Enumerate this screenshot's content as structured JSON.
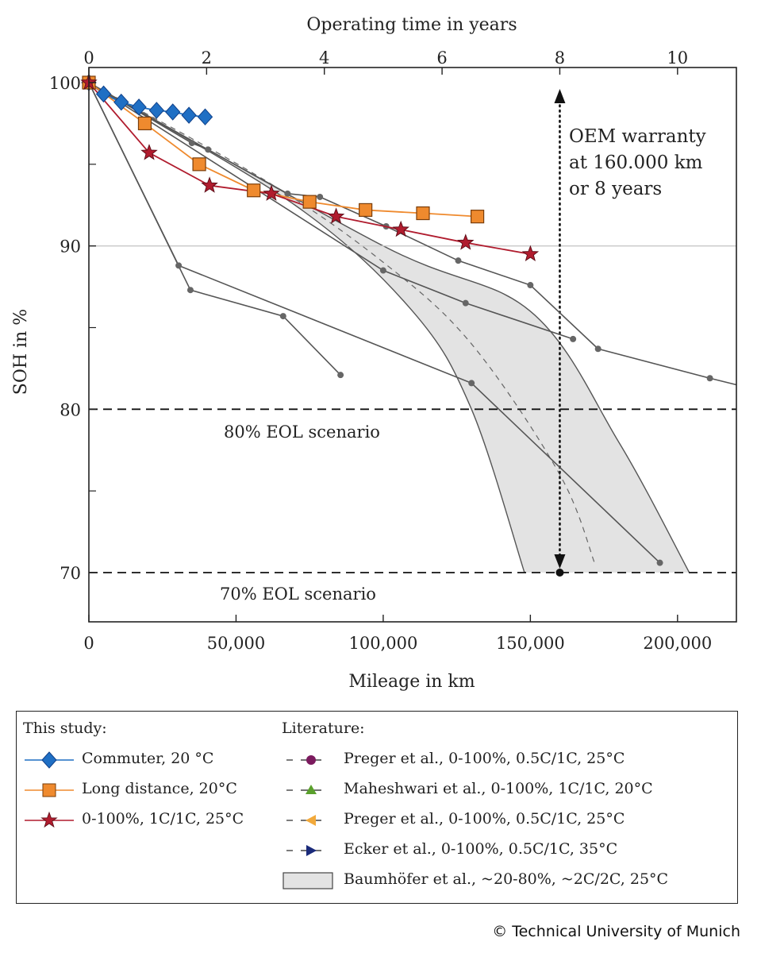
{
  "chart_data": {
    "type": "line",
    "title": "",
    "xlabel": "Mileage in km",
    "x2label": "Operating time in years",
    "ylabel": "SOH in %",
    "xlim": [
      0,
      220000
    ],
    "x2lim": [
      0,
      11
    ],
    "ylim": [
      67,
      100
    ],
    "xticks": [
      0,
      50000,
      100000,
      150000,
      200000
    ],
    "xtick_labels": [
      "0",
      "50,000",
      "100,000",
      "150,000",
      "200,000"
    ],
    "x2ticks": [
      0,
      2,
      4,
      6,
      8,
      10
    ],
    "yticks": [
      70,
      80,
      90,
      100
    ],
    "y_minor_ticks": [
      75,
      85,
      95
    ],
    "grid": false,
    "hlines": [
      {
        "y": 90,
        "style": "solid-gray"
      },
      {
        "y": 80,
        "style": "dashed",
        "label": "80% EOL scenario"
      },
      {
        "y": 70,
        "style": "dashed",
        "label": "70% EOL scenario"
      }
    ],
    "annotation": {
      "x": 160000,
      "y_range": [
        70,
        100
      ],
      "lines": [
        "OEM warranty",
        "at 160.000 km",
        "or 8 years"
      ]
    },
    "series": [
      {
        "name": "Commuter, 20 °C",
        "color": "#1f6fc4",
        "marker": "diamond",
        "group": "study",
        "x": [
          0,
          5000,
          11000,
          17000,
          23000,
          28500,
          34000,
          39500
        ],
        "y": [
          100,
          99.3,
          98.8,
          98.5,
          98.3,
          98.2,
          98.0,
          97.9
        ]
      },
      {
        "name": "Long distance, 20°C",
        "color": "#ef8a2e",
        "marker": "square",
        "group": "study",
        "x": [
          0,
          19000,
          37500,
          56000,
          75000,
          94000,
          113500,
          132000
        ],
        "y": [
          100,
          97.5,
          95.0,
          93.4,
          92.7,
          92.2,
          92.0,
          91.8
        ]
      },
      {
        "name": "0-100%, 1C/1C, 25°C",
        "color": "#b01c2e",
        "marker": "star",
        "group": "study",
        "x": [
          0,
          20500,
          41000,
          62000,
          84000,
          106000,
          128000,
          150000
        ],
        "y": [
          100,
          95.7,
          93.7,
          93.2,
          91.8,
          91.0,
          90.2,
          89.5
        ]
      },
      {
        "name": "Preger et al., 0-100%, 0.5C/1C, 25°C",
        "color": "#555555",
        "marker": "circle",
        "legend_marker_color": "#7b1a5e",
        "group": "literature",
        "x": [
          0,
          34500,
          66000,
          85500
        ],
        "y": [
          100,
          87.3,
          85.7,
          82.1
        ]
      },
      {
        "name": "Maheshwari et al., 0-100%, 1C/1C, 20°C",
        "color": "#555555",
        "marker": "circle",
        "legend_marker_color": "#5aa02c",
        "group": "literature",
        "x": [
          0,
          30500,
          130000,
          194000
        ],
        "y": [
          100,
          88.8,
          81.6,
          70.6
        ]
      },
      {
        "name": "Preger et al., 0-100%, 0.5C/1C, 25°C",
        "color": "#555555",
        "marker": "circle",
        "legend_marker_color": "#f2a93b",
        "group": "literature",
        "x": [
          0,
          35000,
          40500,
          67500,
          78500,
          101000,
          125500,
          150000,
          173000,
          211000,
          220000
        ],
        "y": [
          100,
          96.3,
          95.9,
          93.2,
          93.0,
          91.2,
          89.1,
          87.6,
          83.7,
          81.9,
          81.5
        ]
      },
      {
        "name": "Ecker et al., 0-100%, 0.5C/1C, 35°C",
        "color": "#555555",
        "marker": "circle",
        "legend_marker_color": "#1a2a7a",
        "group": "literature",
        "x": [
          0,
          100000,
          128000,
          164500
        ],
        "y": [
          100,
          88.5,
          86.5,
          84.3
        ]
      },
      {
        "name": "Baumhöfer et al., ~20-80%, ~2C/2C, 25°C",
        "color": "#e3e3e3",
        "marker": "band",
        "group": "literature",
        "band_upper_x": [
          0,
          100000,
          150000,
          180000,
          204000
        ],
        "band_upper_y": [
          100,
          90.0,
          86.0,
          78.0,
          70.0
        ],
        "band_lower_x": [
          0,
          70000,
          110000,
          130000,
          148000
        ],
        "band_lower_y": [
          100,
          92.5,
          86.0,
          80.0,
          70.0
        ],
        "mean_x": [
          0,
          60000,
          100000,
          130000,
          160000,
          172000
        ],
        "mean_y": [
          100,
          94.0,
          89.0,
          84.0,
          76.0,
          70.5
        ]
      }
    ]
  },
  "legend": {
    "study_heading": "This study:",
    "literature_heading": "Literature:"
  },
  "copyright": "© Technical University of Munich"
}
